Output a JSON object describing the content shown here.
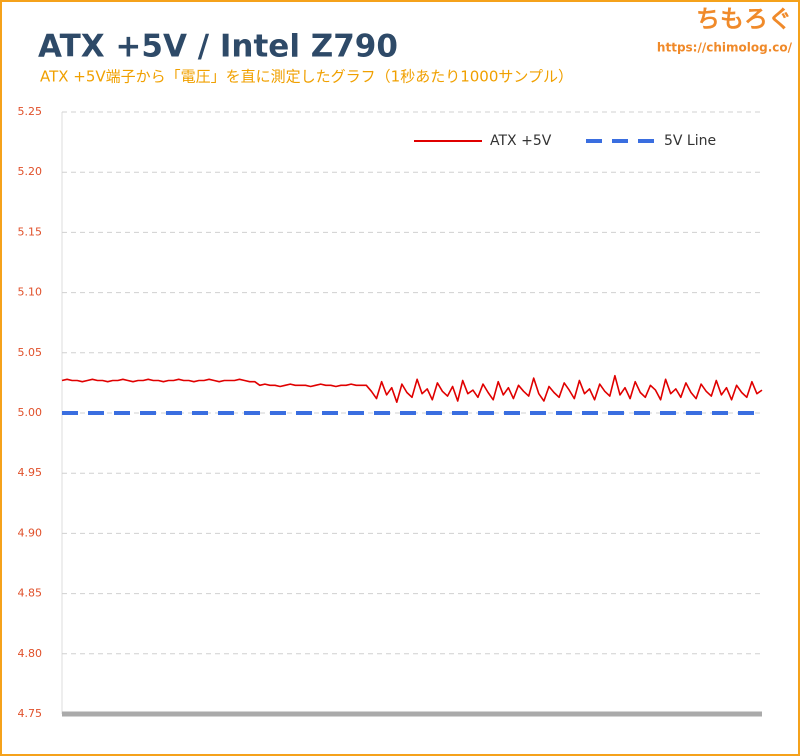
{
  "chart_data": {
    "type": "line",
    "title": "ATX +5V / Intel Z790",
    "subtitle": "ATX +5V端子から「電圧」を直に測定したグラフ（1秒あたり1000サンプル）",
    "watermark": "ちもろぐ",
    "watermark_url": "https://chimolog.co/",
    "ylim": [
      4.75,
      5.25
    ],
    "yticks": [
      5.25,
      {
        "value": 5.2,
        "label": "5.20"
      },
      5.15,
      {
        "value": 5.1,
        "label": "5.10"
      },
      5.05,
      {
        "value": 5,
        "label": "5.00"
      },
      4.95,
      {
        "value": 4.9,
        "label": "4.90"
      },
      4.85,
      {
        "value": 4.8,
        "label": "4.80"
      },
      4.75
    ],
    "grid": true,
    "legend": "upper right",
    "series": [
      {
        "name": "ATX +5V",
        "color": "#e00000",
        "values": [
          5.027,
          5.028,
          5.027,
          5.027,
          5.026,
          5.027,
          5.028,
          5.027,
          5.027,
          5.026,
          5.027,
          5.027,
          5.028,
          5.027,
          5.026,
          5.027,
          5.027,
          5.028,
          5.027,
          5.027,
          5.026,
          5.027,
          5.027,
          5.028,
          5.027,
          5.027,
          5.026,
          5.027,
          5.027,
          5.028,
          5.027,
          5.026,
          5.027,
          5.027,
          5.027,
          5.028,
          5.027,
          5.026,
          5.026,
          5.023,
          5.024,
          5.023,
          5.023,
          5.022,
          5.023,
          5.024,
          5.023,
          5.023,
          5.023,
          5.022,
          5.023,
          5.024,
          5.023,
          5.023,
          5.022,
          5.023,
          5.023,
          5.024,
          5.023,
          5.023,
          5.023,
          5.018,
          5.012,
          5.026,
          5.015,
          5.021,
          5.009,
          5.024,
          5.017,
          5.013,
          5.028,
          5.016,
          5.02,
          5.011,
          5.025,
          5.018,
          5.014,
          5.022,
          5.01,
          5.027,
          5.016,
          5.019,
          5.013,
          5.024,
          5.017,
          5.011,
          5.026,
          5.015,
          5.021,
          5.012,
          5.023,
          5.018,
          5.014,
          5.029,
          5.016,
          5.01,
          5.022,
          5.017,
          5.013,
          5.025,
          5.019,
          5.012,
          5.027,
          5.016,
          5.02,
          5.011,
          5.024,
          5.018,
          5.014,
          5.031,
          5.015,
          5.021,
          5.012,
          5.026,
          5.017,
          5.013,
          5.023,
          5.019,
          5.011,
          5.028,
          5.016,
          5.02,
          5.013,
          5.025,
          5.017,
          5.012,
          5.024,
          5.018,
          5.014,
          5.027,
          5.015,
          5.021,
          5.011,
          5.023,
          5.017,
          5.013,
          5.026,
          5.016,
          5.019
        ]
      }
    ],
    "reference_line": {
      "name": "5V Line",
      "value": 5,
      "color": "#3a6ee0"
    }
  }
}
